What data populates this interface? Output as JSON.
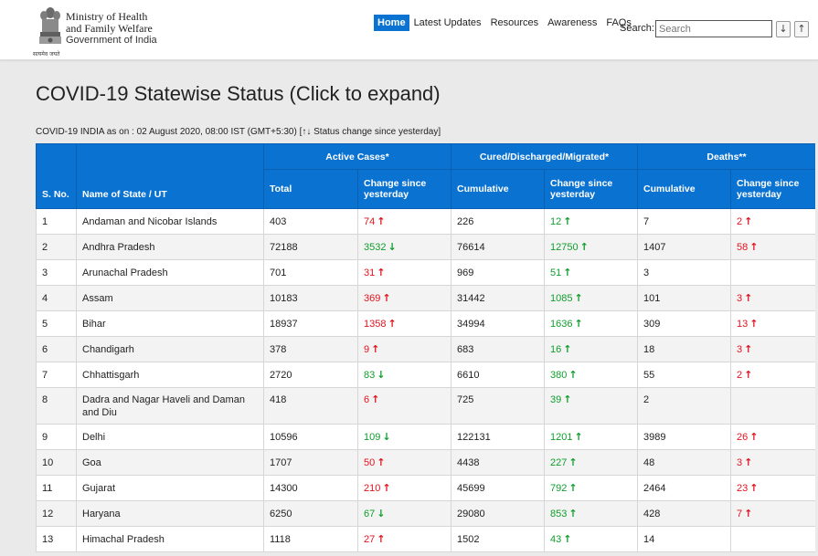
{
  "header": {
    "emblem_caption": "सत्यमेव जयते",
    "ministry_line1": "Ministry of Health",
    "ministry_line2": "and Family Welfare",
    "ministry_line3": "Government of India",
    "nav": [
      "Home",
      "Latest Updates",
      "Resources",
      "Awareness",
      "FAQs"
    ],
    "search_label": "Search:",
    "search_placeholder": "Search",
    "sort_down": "↓",
    "sort_up": "↑"
  },
  "page": {
    "title": "COVID-19 Statewise Status (Click to expand)",
    "as_of": "COVID-19 INDIA as on : 02 August 2020, 08:00 IST (GMT+5:30) [↑↓ Status change since yesterday]"
  },
  "table": {
    "group_headers": [
      "Active Cases*",
      "Cured/Discharged/Migrated*",
      "Deaths**"
    ],
    "col_headers": [
      "S. No.",
      "Name of State / UT",
      "Total",
      "Change since yesterday",
      "Cumulative",
      "Change since yesterday",
      "Cumulative",
      "Change since yesterday"
    ],
    "rows": [
      {
        "sno": "1",
        "state": "Andaman and Nicobar Islands",
        "active": "403",
        "active_chg": "74",
        "active_dir": "up",
        "cured": "226",
        "cured_chg": "12",
        "cured_dir": "up",
        "deaths": "7",
        "deaths_chg": "2",
        "deaths_dir": "up"
      },
      {
        "sno": "2",
        "state": "Andhra Pradesh",
        "active": "72188",
        "active_chg": "3532",
        "active_dir": "down",
        "cured": "76614",
        "cured_chg": "12750",
        "cured_dir": "up",
        "deaths": "1407",
        "deaths_chg": "58",
        "deaths_dir": "up"
      },
      {
        "sno": "3",
        "state": "Arunachal Pradesh",
        "active": "701",
        "active_chg": "31",
        "active_dir": "up",
        "cured": "969",
        "cured_chg": "51",
        "cured_dir": "up",
        "deaths": "3",
        "deaths_chg": "",
        "deaths_dir": ""
      },
      {
        "sno": "4",
        "state": "Assam",
        "active": "10183",
        "active_chg": "369",
        "active_dir": "up",
        "cured": "31442",
        "cured_chg": "1085",
        "cured_dir": "up",
        "deaths": "101",
        "deaths_chg": "3",
        "deaths_dir": "up"
      },
      {
        "sno": "5",
        "state": "Bihar",
        "active": "18937",
        "active_chg": "1358",
        "active_dir": "up",
        "cured": "34994",
        "cured_chg": "1636",
        "cured_dir": "up",
        "deaths": "309",
        "deaths_chg": "13",
        "deaths_dir": "up"
      },
      {
        "sno": "6",
        "state": "Chandigarh",
        "active": "378",
        "active_chg": "9",
        "active_dir": "up",
        "cured": "683",
        "cured_chg": "16",
        "cured_dir": "up",
        "deaths": "18",
        "deaths_chg": "3",
        "deaths_dir": "up"
      },
      {
        "sno": "7",
        "state": "Chhattisgarh",
        "active": "2720",
        "active_chg": "83",
        "active_dir": "down",
        "cured": "6610",
        "cured_chg": "380",
        "cured_dir": "up",
        "deaths": "55",
        "deaths_chg": "2",
        "deaths_dir": "up"
      },
      {
        "sno": "8",
        "state": "Dadra and Nagar Haveli and Daman and Diu",
        "active": "418",
        "active_chg": "6",
        "active_dir": "up",
        "cured": "725",
        "cured_chg": "39",
        "cured_dir": "up",
        "deaths": "2",
        "deaths_chg": "",
        "deaths_dir": ""
      },
      {
        "sno": "9",
        "state": "Delhi",
        "active": "10596",
        "active_chg": "109",
        "active_dir": "down",
        "cured": "122131",
        "cured_chg": "1201",
        "cured_dir": "up",
        "deaths": "3989",
        "deaths_chg": "26",
        "deaths_dir": "up"
      },
      {
        "sno": "10",
        "state": "Goa",
        "active": "1707",
        "active_chg": "50",
        "active_dir": "up",
        "cured": "4438",
        "cured_chg": "227",
        "cured_dir": "up",
        "deaths": "48",
        "deaths_chg": "3",
        "deaths_dir": "up"
      },
      {
        "sno": "11",
        "state": "Gujarat",
        "active": "14300",
        "active_chg": "210",
        "active_dir": "up",
        "cured": "45699",
        "cured_chg": "792",
        "cured_dir": "up",
        "deaths": "2464",
        "deaths_chg": "23",
        "deaths_dir": "up"
      },
      {
        "sno": "12",
        "state": "Haryana",
        "active": "6250",
        "active_chg": "67",
        "active_dir": "down",
        "cured": "29080",
        "cured_chg": "853",
        "cured_dir": "up",
        "deaths": "428",
        "deaths_chg": "7",
        "deaths_dir": "up"
      },
      {
        "sno": "13",
        "state": "Himachal Pradesh",
        "active": "1118",
        "active_chg": "27",
        "active_dir": "up",
        "cured": "1502",
        "cured_chg": "43",
        "cured_dir": "up",
        "deaths": "14",
        "deaths_chg": "",
        "deaths_dir": ""
      }
    ]
  },
  "colors": {
    "header_blue": "#0a72d0",
    "increase_red": "#e0141e",
    "decrease_green": "#0f9d2c"
  },
  "icons": {
    "up": "arrow-up-icon",
    "down": "arrow-down-icon"
  }
}
